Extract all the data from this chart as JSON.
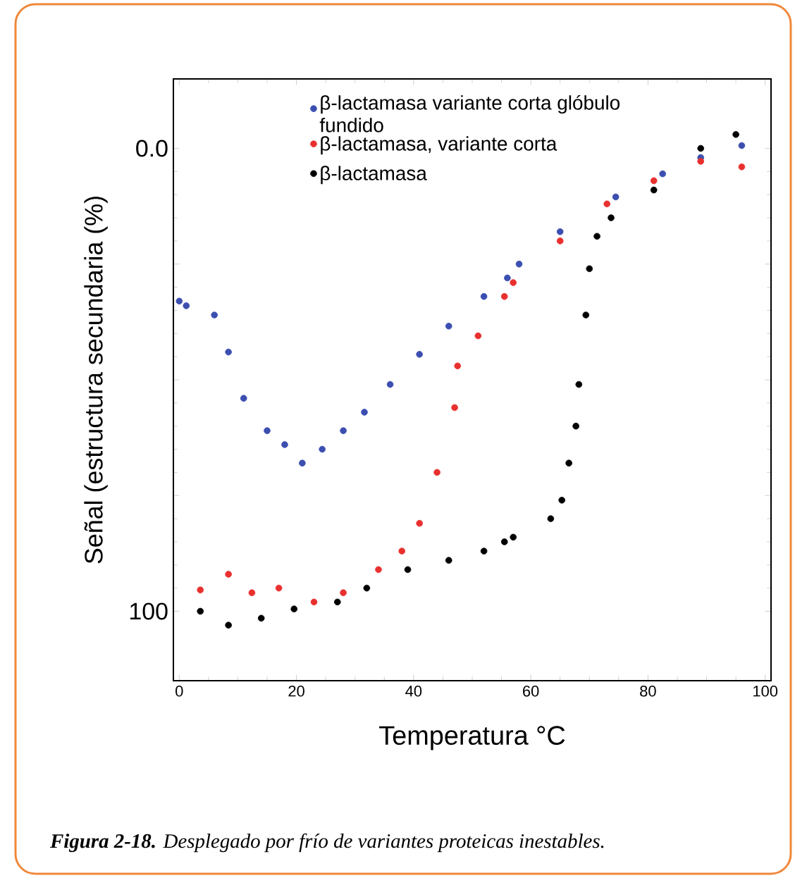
{
  "chart_data": {
    "type": "scatter",
    "xlabel": "Temperatura °C",
    "ylabel": "Señal (estructura secundaria (%)",
    "xlim": [
      -1,
      101
    ],
    "ylim": [
      115,
      -15
    ],
    "xticks": [
      0,
      20,
      40,
      60,
      80,
      100
    ],
    "yticks": [
      {
        "value": 0,
        "label": "0.0"
      },
      {
        "value": 25,
        "label": null
      },
      {
        "value": 50,
        "label": null
      },
      {
        "value": 75,
        "label": null
      },
      100
    ],
    "marker": "circle",
    "legend": "top",
    "annotations": [
      "**Figura 2-18.** Desplegado por frío de variantes proteicas inestables."
    ],
    "series": [
      {
        "name": "β-lactamasa variante corta glóbulo fundido",
        "color": "#3c4fb0",
        "x": [
          0,
          1.2,
          6,
          8.4,
          11,
          15,
          18,
          21,
          24.4,
          28,
          31.6,
          36,
          41,
          46,
          52,
          56,
          58,
          65,
          74.5,
          82.5,
          89,
          96
        ],
        "values": [
          33,
          34,
          36,
          44,
          54,
          61,
          64,
          68,
          65,
          61,
          57,
          51,
          44.5,
          38.4,
          32,
          28,
          25,
          18,
          10.5,
          5.5,
          2,
          -0.6
        ]
      },
      {
        "name": "β-lactamasa, variante corta",
        "color": "#e8302e",
        "x": [
          3.6,
          8.4,
          12.4,
          17,
          23,
          28,
          34,
          38,
          41,
          44,
          47,
          47.5,
          51,
          55.5,
          57,
          65,
          73,
          81,
          89,
          96
        ],
        "values": [
          95.4,
          92,
          96,
          95,
          98,
          96,
          91,
          87,
          81,
          70,
          56,
          47,
          40.5,
          32,
          29,
          20,
          12,
          7,
          2.8,
          4
        ]
      },
      {
        "name": "β-lactamasa",
        "color": "#000000",
        "x": [
          3.6,
          8.4,
          14,
          19.6,
          27,
          32,
          39,
          46,
          52,
          55.5,
          57,
          63.4,
          65.3,
          66.5,
          67.7,
          68.2,
          69.4,
          70,
          71.3,
          73.7,
          81,
          89,
          95
        ],
        "values": [
          100,
          103,
          101.5,
          99.5,
          98,
          95,
          91,
          89,
          87,
          85,
          84,
          80,
          76,
          68,
          60,
          51,
          36,
          26,
          19,
          15,
          9,
          0,
          -3
        ]
      }
    ]
  }
}
